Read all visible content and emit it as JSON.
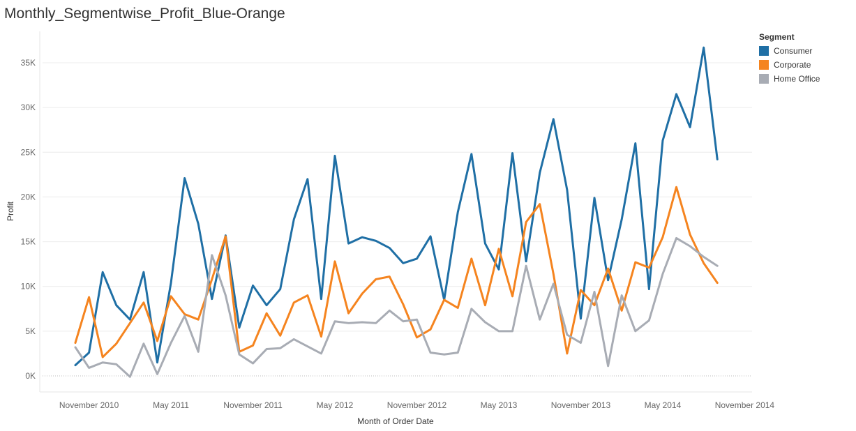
{
  "chart_data": {
    "type": "line",
    "title": "Monthly_Segmentwise_Profit_Blue-Orange",
    "xlabel": "Month of Order Date",
    "ylabel": "Profit",
    "x_start": "October 2010",
    "x_ticks": [
      {
        "label": "November 2010",
        "index": 1
      },
      {
        "label": "May 2011",
        "index": 7
      },
      {
        "label": "November 2011",
        "index": 13
      },
      {
        "label": "May 2012",
        "index": 19
      },
      {
        "label": "November 2012",
        "index": 25
      },
      {
        "label": "May 2013",
        "index": 31
      },
      {
        "label": "November 2013",
        "index": 37
      },
      {
        "label": "May 2014",
        "index": 43
      },
      {
        "label": "November 2014",
        "index": 49
      }
    ],
    "y_ticks": [
      {
        "label": "0K",
        "value": 0
      },
      {
        "label": "5K",
        "value": 5000
      },
      {
        "label": "10K",
        "value": 10000
      },
      {
        "label": "15K",
        "value": 15000
      },
      {
        "label": "20K",
        "value": 20000
      },
      {
        "label": "25K",
        "value": 25000
      },
      {
        "label": "30K",
        "value": 30000
      },
      {
        "label": "35K",
        "value": 35000
      }
    ],
    "ylim": [
      -2000,
      37500
    ],
    "grid": true,
    "legend_title": "Segment",
    "legend_position": "top-right",
    "series": [
      {
        "name": "Consumer",
        "color": "#1f6fa5",
        "values": [
          1200,
          2600,
          11600,
          7900,
          6300,
          11600,
          1500,
          10400,
          22100,
          17000,
          8600,
          15700,
          5400,
          10100,
          7900,
          9700,
          17500,
          22000,
          8600,
          24600,
          14800,
          15500,
          15100,
          14300,
          12600,
          13100,
          15600,
          8500,
          18300,
          24800,
          14800,
          11900,
          24900,
          12800,
          22700,
          28700,
          20800,
          6400,
          19900,
          10700,
          17500,
          26000,
          9700,
          26300,
          31500,
          27800,
          36700,
          24200
        ]
      },
      {
        "name": "Corporate",
        "color": "#f5841f",
        "values": [
          3700,
          8800,
          2100,
          3600,
          5900,
          8200,
          3900,
          8900,
          6900,
          6300,
          10800,
          15600,
          2700,
          3400,
          7000,
          4500,
          8200,
          9000,
          4400,
          12800,
          7000,
          9200,
          10800,
          11100,
          8000,
          4300,
          5200,
          8500,
          7600,
          13100,
          7900,
          14200,
          8900,
          17200,
          19200,
          11400,
          2500,
          9600,
          7900,
          12000,
          7300,
          12700,
          12100,
          15500,
          21100,
          15800,
          12600,
          10400
        ]
      },
      {
        "name": "Home Office",
        "color": "#a8acb4",
        "values": [
          3200,
          900,
          1500,
          1300,
          -100,
          3600,
          200,
          3700,
          6700,
          2700,
          13500,
          9000,
          2400,
          1400,
          3000,
          3100,
          4100,
          3300,
          2500,
          6100,
          5900,
          6000,
          5900,
          7300,
          6100,
          6300,
          2600,
          2400,
          2600,
          7500,
          6000,
          5000,
          5000,
          12300,
          6300,
          10300,
          4600,
          3700,
          9400,
          1100,
          9000,
          5000,
          6200,
          11400,
          15400,
          14500,
          13300,
          12300
        ]
      }
    ]
  }
}
